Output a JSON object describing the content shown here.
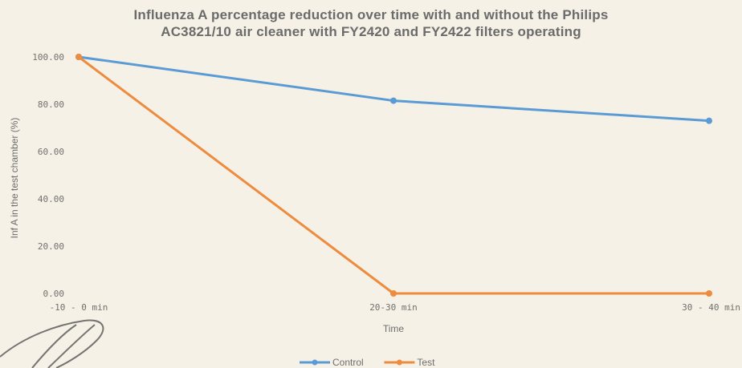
{
  "chart_data": {
    "type": "line",
    "title": [
      "Influenza A percentage reduction over time with and without the Philips",
      "AC3821/10 air cleaner with FY2420 and FY2422 filters operating"
    ],
    "xlabel": "Time",
    "ylabel": "Inf A in the test chamber (%)",
    "categories": [
      "-10 - 0 min",
      "20-30 min",
      "30 - 40 min"
    ],
    "y_ticks": [
      "0.00",
      "20.00",
      "40.00",
      "60.00",
      "80.00",
      "100.00"
    ],
    "ylim": [
      0,
      100
    ],
    "grid": false,
    "legend_placement": "bottom",
    "series": [
      {
        "name": "Control",
        "color": "#5b9bd5",
        "values": [
          100,
          81.5,
          73
        ]
      },
      {
        "name": "Test",
        "color": "#ed8b3f",
        "values": [
          100,
          0,
          0
        ]
      }
    ]
  }
}
